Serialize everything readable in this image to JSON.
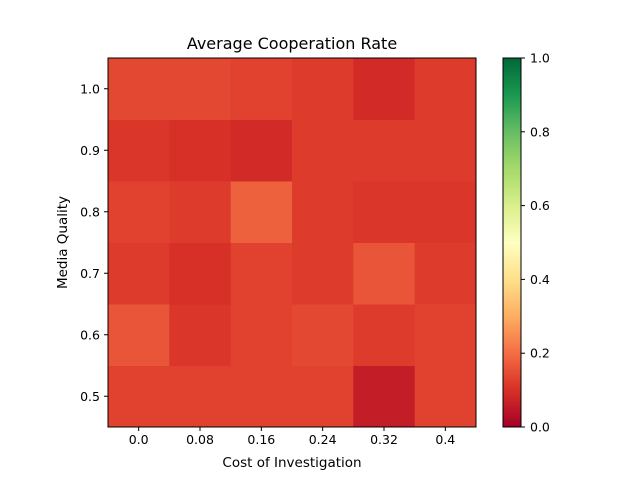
{
  "chart_data": {
    "type": "heatmap",
    "title": "Average Cooperation Rate",
    "xlabel": "Cost of Investigation",
    "ylabel": "Media Quality",
    "x": [
      "0.0",
      "0.08",
      "0.16",
      "0.24",
      "0.32",
      "0.4"
    ],
    "y": [
      "0.5",
      "0.6",
      "0.7",
      "0.8",
      "0.9",
      "1.0"
    ],
    "values": [
      [
        0.13,
        0.13,
        0.13,
        0.13,
        0.06,
        0.13
      ],
      [
        0.16,
        0.11,
        0.13,
        0.14,
        0.12,
        0.13
      ],
      [
        0.12,
        0.1,
        0.13,
        0.12,
        0.16,
        0.12
      ],
      [
        0.13,
        0.12,
        0.18,
        0.12,
        0.11,
        0.11
      ],
      [
        0.11,
        0.1,
        0.09,
        0.12,
        0.12,
        0.12
      ],
      [
        0.14,
        0.14,
        0.13,
        0.12,
        0.09,
        0.12
      ]
    ],
    "colorbar": {
      "range": [
        0.0,
        1.0
      ],
      "ticks": [
        "0.0",
        "0.2",
        "0.4",
        "0.6",
        "0.8",
        "1.0"
      ],
      "colormap": "RdYlGn"
    },
    "grid": false
  }
}
